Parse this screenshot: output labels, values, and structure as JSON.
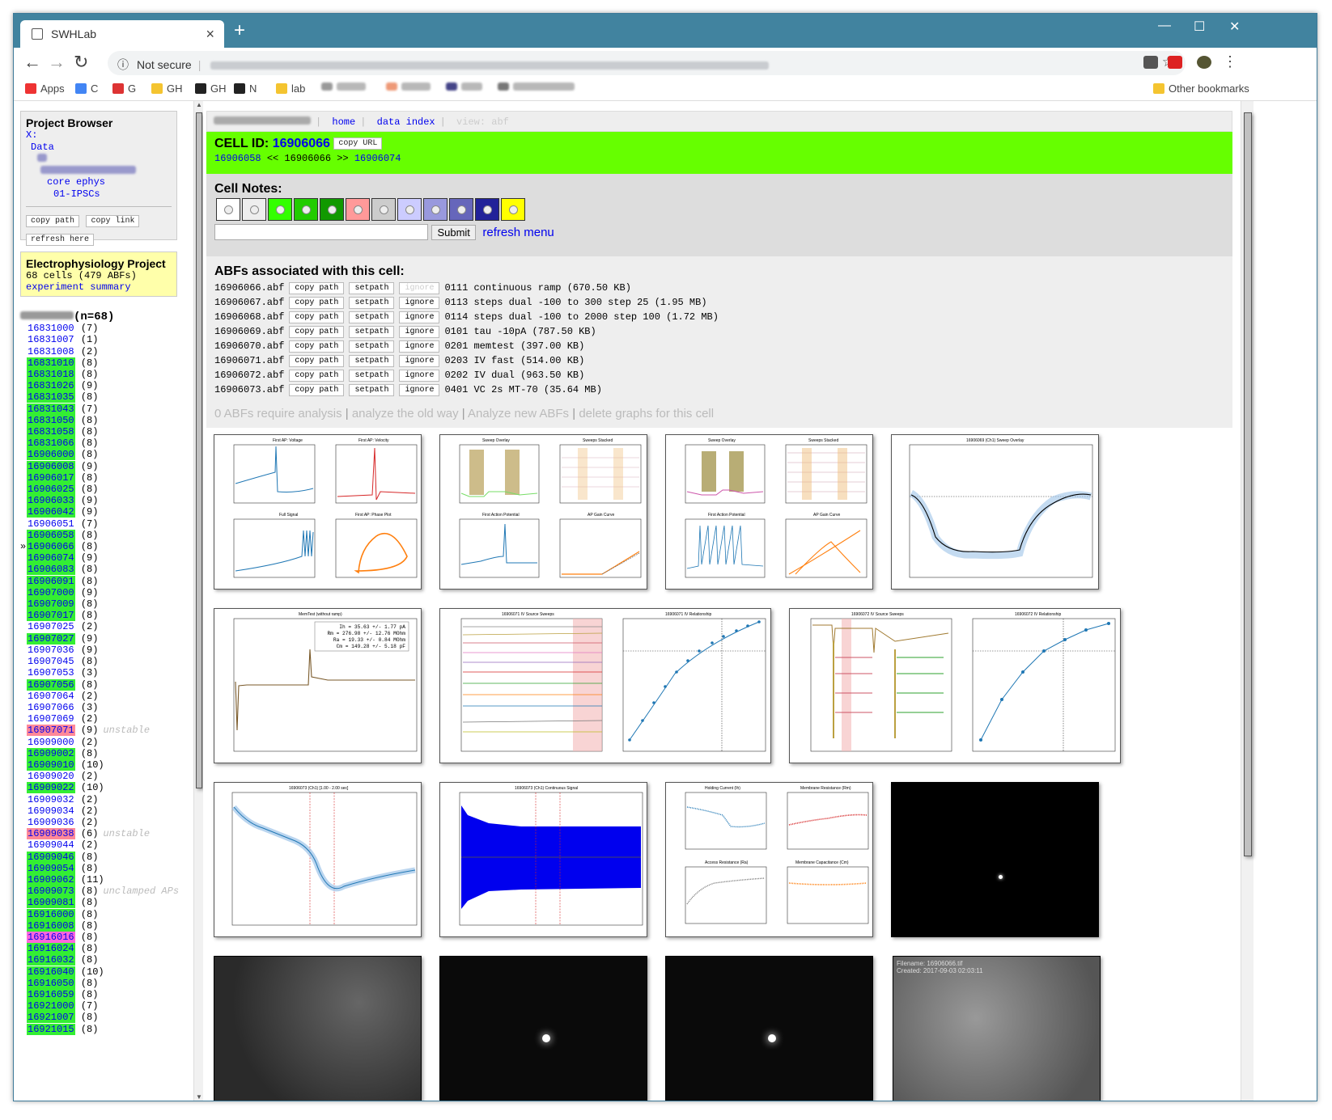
{
  "browser": {
    "tab_title": "SWHLab",
    "not_secure": "Not secure",
    "tab_close": "×",
    "new_tab": "+",
    "min": "—",
    "max": "☐",
    "close": "✕"
  },
  "bookmarks": [
    {
      "label": "Apps",
      "color": "#e33"
    },
    {
      "label": "C",
      "color": "#4285f4"
    },
    {
      "label": "G",
      "color": "#d33"
    },
    {
      "label": "GH",
      "color": "#f4c430"
    },
    {
      "label": "GH",
      "color": "#222"
    },
    {
      "label": "N",
      "color": "#222"
    },
    {
      "label": "lab",
      "color": "#f4c430"
    }
  ],
  "other_bookmarks": "Other bookmarks",
  "project_browser": {
    "title": "Project Browser",
    "root": "X:",
    "data": "Data",
    "folder1": "core ephys",
    "folder2": "01-IPSCs",
    "btn_copy_path": "copy path",
    "btn_copy_link": "copy link",
    "btn_refresh": "refresh here"
  },
  "ephys_project": {
    "title": "Electrophysiology Project",
    "summary": "68 cells (479 ABFs)",
    "link": "experiment summary"
  },
  "cell_list_count": "(n=68)",
  "cells": [
    {
      "id": "16831000",
      "n": "(7)",
      "c": ""
    },
    {
      "id": "16831007",
      "n": "(1)",
      "c": ""
    },
    {
      "id": "16831008",
      "n": "(2)",
      "c": ""
    },
    {
      "id": "16831010",
      "n": "(8)",
      "c": "g"
    },
    {
      "id": "16831018",
      "n": "(8)",
      "c": "g"
    },
    {
      "id": "16831026",
      "n": "(9)",
      "c": "g"
    },
    {
      "id": "16831035",
      "n": "(8)",
      "c": "g"
    },
    {
      "id": "16831043",
      "n": "(7)",
      "c": "g"
    },
    {
      "id": "16831050",
      "n": "(8)",
      "c": "g"
    },
    {
      "id": "16831058",
      "n": "(8)",
      "c": "g"
    },
    {
      "id": "16831066",
      "n": "(8)",
      "c": "g"
    },
    {
      "id": "16906000",
      "n": "(8)",
      "c": "g"
    },
    {
      "id": "16906008",
      "n": "(9)",
      "c": "g"
    },
    {
      "id": "16906017",
      "n": "(8)",
      "c": "g"
    },
    {
      "id": "16906025",
      "n": "(8)",
      "c": "g"
    },
    {
      "id": "16906033",
      "n": "(9)",
      "c": "g"
    },
    {
      "id": "16906042",
      "n": "(9)",
      "c": "g"
    },
    {
      "id": "16906051",
      "n": "(7)",
      "c": ""
    },
    {
      "id": "16906058",
      "n": "(8)",
      "c": "g"
    },
    {
      "id": "16906066",
      "n": "(8)",
      "c": "g",
      "cur": "»"
    },
    {
      "id": "16906074",
      "n": "(9)",
      "c": "g"
    },
    {
      "id": "16906083",
      "n": "(8)",
      "c": "g"
    },
    {
      "id": "16906091",
      "n": "(8)",
      "c": "g"
    },
    {
      "id": "16907000",
      "n": "(9)",
      "c": "g"
    },
    {
      "id": "16907009",
      "n": "(8)",
      "c": "g"
    },
    {
      "id": "16907017",
      "n": "(8)",
      "c": "g"
    },
    {
      "id": "16907025",
      "n": "(2)",
      "c": ""
    },
    {
      "id": "16907027",
      "n": "(9)",
      "c": "g"
    },
    {
      "id": "16907036",
      "n": "(9)",
      "c": ""
    },
    {
      "id": "16907045",
      "n": "(8)",
      "c": ""
    },
    {
      "id": "16907053",
      "n": "(3)",
      "c": ""
    },
    {
      "id": "16907056",
      "n": "(8)",
      "c": "g"
    },
    {
      "id": "16907064",
      "n": "(2)",
      "c": ""
    },
    {
      "id": "16907066",
      "n": "(3)",
      "c": ""
    },
    {
      "id": "16907069",
      "n": "(2)",
      "c": ""
    },
    {
      "id": "16907071",
      "n": "(9)",
      "c": "r",
      "note": "unstable"
    },
    {
      "id": "16909000",
      "n": "(2)",
      "c": ""
    },
    {
      "id": "16909002",
      "n": "(8)",
      "c": "g"
    },
    {
      "id": "16909010",
      "n": "(10)",
      "c": "g"
    },
    {
      "id": "16909020",
      "n": "(2)",
      "c": ""
    },
    {
      "id": "16909022",
      "n": "(10)",
      "c": "g"
    },
    {
      "id": "16909032",
      "n": "(2)",
      "c": ""
    },
    {
      "id": "16909034",
      "n": "(2)",
      "c": ""
    },
    {
      "id": "16909036",
      "n": "(2)",
      "c": ""
    },
    {
      "id": "16909038",
      "n": "(6)",
      "c": "r",
      "note": "unstable"
    },
    {
      "id": "16909044",
      "n": "(2)",
      "c": ""
    },
    {
      "id": "16909046",
      "n": "(8)",
      "c": "g"
    },
    {
      "id": "16909054",
      "n": "(8)",
      "c": "g"
    },
    {
      "id": "16909062",
      "n": "(11)",
      "c": "g"
    },
    {
      "id": "16909073",
      "n": "(8)",
      "c": "g",
      "note": "unclamped APs"
    },
    {
      "id": "16909081",
      "n": "(8)",
      "c": "g"
    },
    {
      "id": "16916000",
      "n": "(8)",
      "c": "g"
    },
    {
      "id": "16916008",
      "n": "(8)",
      "c": "g"
    },
    {
      "id": "16916016",
      "n": "(8)",
      "c": "mg"
    },
    {
      "id": "16916024",
      "n": "(8)",
      "c": "g"
    },
    {
      "id": "16916032",
      "n": "(8)",
      "c": "g"
    },
    {
      "id": "16916040",
      "n": "(10)",
      "c": "g"
    },
    {
      "id": "16916050",
      "n": "(8)",
      "c": "g"
    },
    {
      "id": "16916059",
      "n": "(8)",
      "c": "g"
    },
    {
      "id": "16921000",
      "n": "(7)",
      "c": "g"
    },
    {
      "id": "16921007",
      "n": "(8)",
      "c": "g"
    },
    {
      "id": "16921015",
      "n": "(8)",
      "c": "g"
    }
  ],
  "topnav": {
    "home": "home",
    "data_index": "data index",
    "view": "view: abf"
  },
  "cell": {
    "label": "CELL ID:",
    "id": "16906066",
    "copy_url": "copy URL",
    "prev": "16906058",
    "prev_sep": "<<",
    "current": "16906066",
    "next_sep": ">>",
    "next": "16906074"
  },
  "notes": {
    "title": "Cell Notes:",
    "swatches": [
      "#ffffff",
      "#eeeeee",
      "#33ff00",
      "#22cc00",
      "#119900",
      "#ff9999",
      "#cccccc",
      "#ccccff",
      "#9999dd",
      "#6666bb",
      "#222299",
      "#ffff00"
    ],
    "submit": "Submit",
    "refresh": "refresh menu"
  },
  "abfs": {
    "title": "ABFs associated with this cell:",
    "btn_copy": "copy path",
    "btn_set": "setpath",
    "btn_ignore": "ignore",
    "rows": [
      {
        "file": "16906066.abf",
        "desc": "0111 continuous ramp (670.50 KB)",
        "ign_dis": true
      },
      {
        "file": "16906067.abf",
        "desc": "0113 steps dual -100 to 300 step 25 (1.95 MB)"
      },
      {
        "file": "16906068.abf",
        "desc": "0114 steps dual -100 to 2000 step 100 (1.72 MB)"
      },
      {
        "file": "16906069.abf",
        "desc": "0101 tau -10pA (787.50 KB)"
      },
      {
        "file": "16906070.abf",
        "desc": "0201 memtest (397.00 KB)"
      },
      {
        "file": "16906071.abf",
        "desc": "0203 IV fast (514.00 KB)"
      },
      {
        "file": "16906072.abf",
        "desc": "0202 IV dual (963.50 KB)"
      },
      {
        "file": "16906073.abf",
        "desc": "0401 VC 2s MT-70 (35.64 MB)"
      }
    ]
  },
  "analyze": {
    "a": "0 ABFs require analysis",
    "b": "analyze the old way",
    "c": "Analyze new ABFs",
    "d": "delete graphs for this cell",
    "sep": "|"
  },
  "graphs": {
    "t1": [
      "First AP: Voltage",
      "First AP: Velocity",
      "Full Signal",
      "First AP: Phase Plot"
    ],
    "t2": [
      "Sweep Overlay",
      "Sweeps Stacked",
      "First Action Potential",
      "AP Gain Curve"
    ],
    "t3": [
      "Sweep Overlay",
      "Sweeps Stacked",
      "First Action Potential",
      "AP Gain Curve"
    ],
    "t4": "16906069 (Ch1) Sweep Overlay",
    "t5": "MemTest (without ramp)",
    "memtest": [
      "Ih = 35.63 +/- 1.77 pA",
      "Rm = 276.98 +/- 12.76 MOhm",
      "Ra = 19.33 +/- 0.84 MOhm",
      "Cm = 149.28 +/- 5.18 pF"
    ],
    "t6": [
      "16906071 IV Source Sweeps",
      "16906071 IV Relationship"
    ],
    "t7": [
      "16906072 IV Source Sweeps",
      "16906072 IV Relationship"
    ],
    "t8": "16906073 (Ch1) [1.00 - 2.00 sec]",
    "t9": "16906073 (Ch1) Continuous Signal",
    "t10": [
      "Holding Current (Ih)",
      "Membrane Resistance (Rm)",
      "Access Resistance (Ra)",
      "Membrane Capacitance (Cm)"
    ],
    "img1": "Filename: 16906066.tif",
    "img1b": "Created: 2017-09-03 02:03:11"
  }
}
